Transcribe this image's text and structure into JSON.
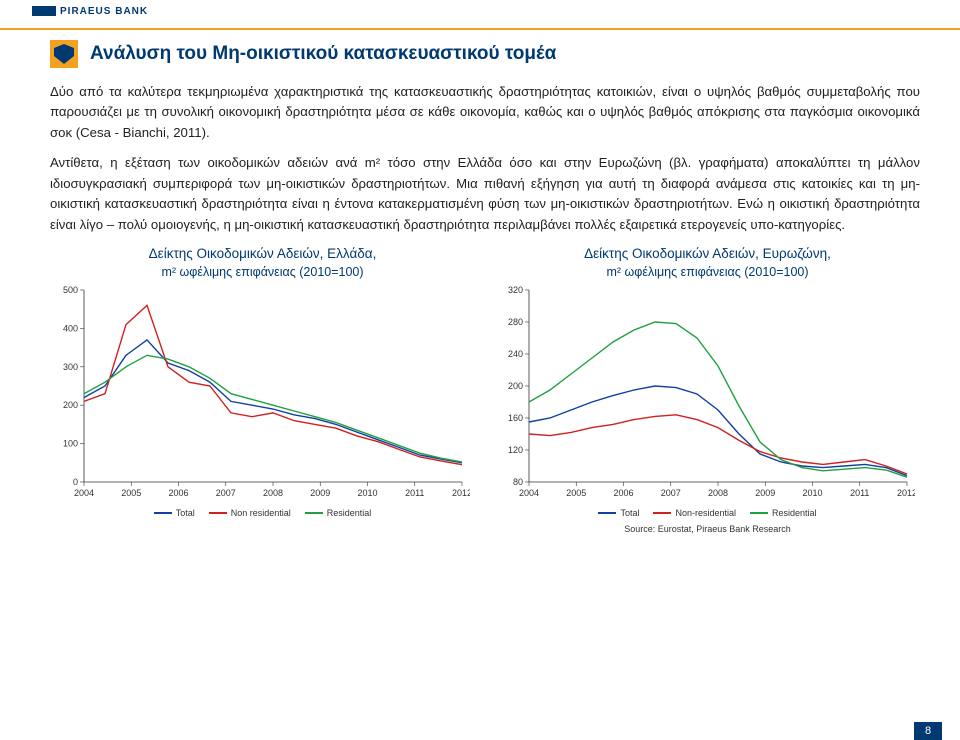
{
  "brand": "PIRAEUS BANK",
  "title": "Ανάλυση του Μη-οικιστικού κατασκευαστικού τομέα",
  "paragraphs": [
    "Δύο από τα καλύτερα τεκμηριωμένα χαρακτηριστικά της κατασκευαστικής δραστηριότητας κατοικιών, είναι ο υψηλός βαθμός συμμεταβολής που παρουσιάζει με τη συνολική οικονομική δραστηριότητα μέσα σε κάθε οικονομία, καθώς και ο υψηλός βαθμός απόκρισης στα παγκόσμια οικονομικά σοκ (Cesa - Bianchi, 2011).",
    "Αντίθετα, η εξέταση των οικοδομικών αδειών ανά m² τόσο στην Ελλάδα όσο και στην Ευρωζώνη (βλ. γραφήματα) αποκαλύπτει τη μάλλον ιδιοσυγκρασιακή συμπεριφορά των μη-οικιστικών δραστηριοτήτων. Μια πιθανή εξήγηση για αυτή τη διαφορά ανάμεσα στις κατοικίες και τη μη-οικιστική κατασκευαστική δραστηριότητα είναι η έντονα κατακερματισμένη φύση των μη-οικιστικών δραστηριοτήτων. Ενώ η οικιστική δραστηριότητα είναι λίγο – πολύ ομοιογενής, η μη-οικιστική κατασκευαστική δραστηριότητα περιλαμβάνει πολλές εξαιρετικά ετερογενείς υπο-κατηγορίες."
  ],
  "chart_left": {
    "title_line1": "Δείκτης Οικοδομικών Αδειών, Ελλάδα,",
    "title_line2": "m² ωφέλιμης επιφάνειας (2010=100)",
    "ylim": [
      0,
      500
    ],
    "yticks": [
      0,
      100,
      200,
      300,
      400,
      500
    ],
    "xticks": [
      "2004",
      "2005",
      "2006",
      "2007",
      "2008",
      "2009",
      "2010",
      "2011",
      "2012"
    ],
    "colors": {
      "total": "#1040a0",
      "nonres": "#d02020",
      "res": "#20a040"
    },
    "series": {
      "total": [
        220,
        250,
        330,
        370,
        310,
        290,
        260,
        210,
        200,
        190,
        175,
        165,
        150,
        130,
        110,
        90,
        70,
        60,
        50
      ],
      "nonres": [
        210,
        230,
        410,
        460,
        300,
        260,
        250,
        180,
        170,
        180,
        160,
        150,
        140,
        120,
        105,
        85,
        65,
        55,
        45
      ],
      "res": [
        230,
        260,
        300,
        330,
        320,
        300,
        270,
        230,
        215,
        200,
        185,
        170,
        155,
        135,
        115,
        95,
        75,
        62,
        52
      ]
    },
    "legend": [
      "Total",
      "Non residential",
      "Residential"
    ]
  },
  "chart_right": {
    "title_line1": "Δείκτης Οικοδομικών Αδειών, Ευρωζώνη,",
    "title_line2": "m² ωφέλιμης επιφάνειας (2010=100)",
    "ylim": [
      80,
      320
    ],
    "yticks": [
      80,
      120,
      160,
      200,
      240,
      280,
      320
    ],
    "xticks": [
      "2004",
      "2005",
      "2006",
      "2007",
      "2008",
      "2009",
      "2010",
      "2011",
      "2012"
    ],
    "colors": {
      "total": "#1040a0",
      "nonres": "#d02020",
      "res": "#20a040"
    },
    "series": {
      "total": [
        155,
        160,
        170,
        180,
        188,
        195,
        200,
        198,
        190,
        170,
        140,
        115,
        105,
        100,
        98,
        100,
        102,
        98,
        88
      ],
      "nonres": [
        140,
        138,
        142,
        148,
        152,
        158,
        162,
        164,
        158,
        148,
        132,
        118,
        110,
        105,
        102,
        105,
        108,
        100,
        90
      ],
      "res": [
        180,
        195,
        215,
        235,
        255,
        270,
        280,
        278,
        260,
        225,
        175,
        130,
        108,
        98,
        94,
        96,
        98,
        95,
        86
      ]
    },
    "legend": [
      "Total",
      "Non-residential",
      "Residential"
    ]
  },
  "source": "Source: Eurostat, Piraeus Bank Research",
  "page_num": "8"
}
